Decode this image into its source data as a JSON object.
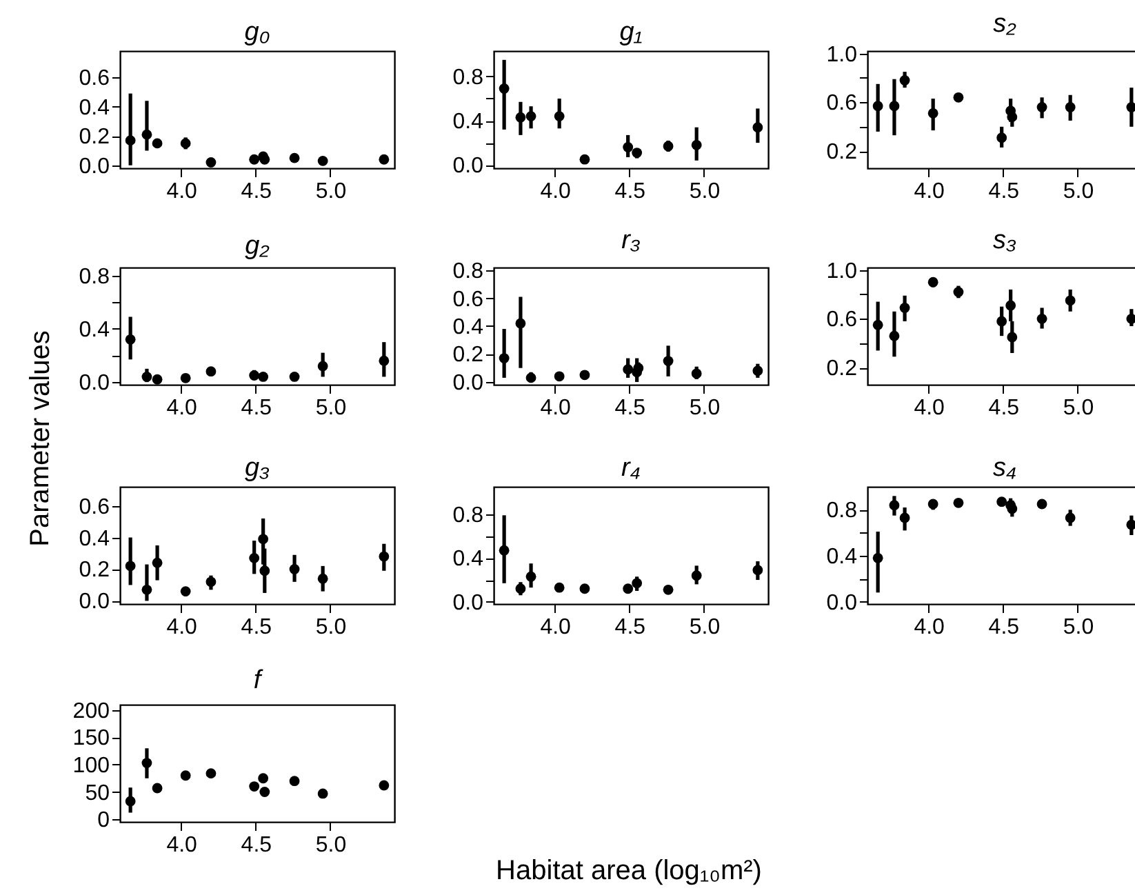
{
  "chart_data": [
    {
      "type": "scatter",
      "title": "g₀",
      "marker": "circle",
      "x": [
        3.66,
        3.77,
        3.84,
        4.03,
        4.2,
        4.49,
        4.55,
        4.56,
        4.76,
        4.95,
        5.36
      ],
      "values": [
        0.17,
        0.21,
        0.15,
        0.15,
        0.02,
        0.04,
        0.06,
        0.04,
        0.05,
        0.03,
        0.04
      ],
      "errors": [
        [
          0.0,
          0.49
        ],
        [
          0.1,
          0.44
        ],
        [
          0.13,
          0.17
        ],
        [
          0.11,
          0.19
        ],
        [
          0.0,
          0.04
        ],
        null,
        [
          0.03,
          0.07
        ],
        null,
        null,
        null,
        null
      ],
      "xlim": [
        3.59,
        5.43
      ],
      "xticks": [
        {
          "value": 4,
          "label": "4.0"
        },
        {
          "value": 4.5,
          "label": "4.5"
        },
        {
          "value": 5,
          "label": "5.0"
        }
      ],
      "ylim": [
        -0.02,
        0.78
      ],
      "yticks": [
        {
          "value": 0,
          "label": "0.0"
        },
        {
          "value": 0.2,
          "label": "0.2"
        },
        {
          "value": 0.4,
          "label": "0.4"
        },
        {
          "value": 0.6,
          "label": "0.6"
        }
      ]
    },
    {
      "type": "scatter",
      "title": "g₁",
      "marker": "circle",
      "x": [
        3.66,
        3.77,
        3.84,
        4.03,
        4.2,
        4.49,
        4.55,
        4.56,
        4.76,
        4.95,
        5.36
      ],
      "values": [
        0.69,
        0.43,
        0.44,
        0.44,
        0.05,
        0.16,
        0.11,
        null,
        0.17,
        0.18,
        0.34
      ],
      "errors": [
        [
          0.32,
          0.95
        ],
        [
          0.27,
          0.57
        ],
        [
          0.33,
          0.53
        ],
        [
          0.33,
          0.6
        ],
        [
          0.03,
          0.07
        ],
        [
          0.07,
          0.27
        ],
        [
          0.06,
          0.14
        ],
        null,
        [
          0.12,
          0.22
        ],
        [
          0.04,
          0.34
        ],
        [
          0.2,
          0.51
        ]
      ],
      "xlim": [
        3.59,
        5.43
      ],
      "xticks": [
        {
          "value": 4,
          "label": "4.0"
        },
        {
          "value": 4.5,
          "label": "4.5"
        },
        {
          "value": 5,
          "label": "5.0"
        }
      ],
      "ylim": [
        -0.03,
        1.03
      ],
      "yticks": [
        {
          "value": 0,
          "label": "0.0"
        },
        {
          "value": 0.2,
          "label": null
        },
        {
          "value": 0.4,
          "label": "0.4"
        },
        {
          "value": 0.6,
          "label": null
        },
        {
          "value": 0.8,
          "label": "0.8"
        }
      ]
    },
    {
      "type": "scatter",
      "title": "s₂",
      "marker": "circle",
      "x": [
        3.66,
        3.77,
        3.84,
        4.03,
        4.2,
        4.49,
        4.55,
        4.56,
        4.76,
        4.95,
        5.36
      ],
      "values": [
        0.57,
        0.57,
        0.78,
        0.51,
        0.64,
        0.31,
        0.53,
        0.48,
        0.56,
        0.56,
        0.56
      ],
      "errors": [
        [
          0.36,
          0.75
        ],
        [
          0.33,
          0.79
        ],
        [
          0.72,
          0.85
        ],
        [
          0.37,
          0.63
        ],
        [
          0.61,
          0.66
        ],
        [
          0.23,
          0.4
        ],
        [
          0.44,
          0.63
        ],
        [
          0.4,
          0.55
        ],
        [
          0.47,
          0.64
        ],
        [
          0.45,
          0.66
        ],
        [
          0.4,
          0.72
        ]
      ],
      "xlim": [
        3.59,
        5.43
      ],
      "xticks": [
        {
          "value": 4,
          "label": "4.0"
        },
        {
          "value": 4.5,
          "label": "4.5"
        },
        {
          "value": 5,
          "label": "5.0"
        }
      ],
      "ylim": [
        0.06,
        1.02
      ],
      "yticks": [
        {
          "value": 0.2,
          "label": "0.2"
        },
        {
          "value": 0.4,
          "label": null
        },
        {
          "value": 0.6,
          "label": "0.6"
        },
        {
          "value": 0.8,
          "label": null
        },
        {
          "value": 1,
          "label": "1.0"
        }
      ]
    },
    {
      "type": "scatter",
      "title": "g₂",
      "ylabel": "Parameter values",
      "marker": "circle",
      "x": [
        3.66,
        3.77,
        3.84,
        4.03,
        4.2,
        4.49,
        4.55,
        4.56,
        4.76,
        4.95,
        5.36
      ],
      "values": [
        0.32,
        0.04,
        0.02,
        0.03,
        0.08,
        0.05,
        0.04,
        null,
        0.04,
        0.12,
        0.16
      ],
      "errors": [
        [
          0.17,
          0.49
        ],
        [
          0.0,
          0.1
        ],
        null,
        null,
        [
          0.07,
          0.1
        ],
        [
          0.02,
          0.09
        ],
        [
          0.01,
          0.07
        ],
        null,
        [
          0.02,
          0.07
        ],
        [
          0.04,
          0.22
        ],
        [
          0.04,
          0.3
        ]
      ],
      "xlim": [
        3.59,
        5.43
      ],
      "xticks": [
        {
          "value": 4,
          "label": "4.0"
        },
        {
          "value": 4.5,
          "label": "4.5"
        },
        {
          "value": 5,
          "label": "5.0"
        }
      ],
      "ylim": [
        -0.02,
        0.86
      ],
      "yticks": [
        {
          "value": 0,
          "label": "0.0"
        },
        {
          "value": 0.2,
          "label": null
        },
        {
          "value": 0.4,
          "label": "0.4"
        },
        {
          "value": 0.6,
          "label": null
        },
        {
          "value": 0.8,
          "label": "0.8"
        }
      ]
    },
    {
      "type": "scatter",
      "title": "r₃",
      "marker": "circle",
      "x": [
        3.66,
        3.77,
        3.84,
        4.03,
        4.2,
        4.49,
        4.55,
        4.56,
        4.76,
        4.95,
        5.36
      ],
      "values": [
        0.17,
        0.42,
        0.03,
        0.04,
        0.05,
        0.09,
        0.07,
        0.1,
        0.15,
        0.06,
        0.08
      ],
      "errors": [
        [
          0.03,
          0.38
        ],
        [
          0.1,
          0.61
        ],
        [
          0.0,
          0.07
        ],
        [
          0.02,
          0.07
        ],
        [
          0.03,
          0.07
        ],
        [
          0.03,
          0.17
        ],
        [
          0.0,
          0.17
        ],
        [
          0.05,
          0.14
        ],
        [
          0.04,
          0.26
        ],
        [
          0.02,
          0.11
        ],
        [
          0.03,
          0.13
        ]
      ],
      "xlim": [
        3.59,
        5.43
      ],
      "xticks": [
        {
          "value": 4,
          "label": "4.0"
        },
        {
          "value": 4.5,
          "label": "4.5"
        },
        {
          "value": 5,
          "label": "5.0"
        }
      ],
      "ylim": [
        -0.02,
        0.82
      ],
      "yticks": [
        {
          "value": 0,
          "label": "0.0"
        },
        {
          "value": 0.2,
          "label": "0.2"
        },
        {
          "value": 0.4,
          "label": "0.4"
        },
        {
          "value": 0.6,
          "label": "0.6"
        },
        {
          "value": 0.8,
          "label": "0.8"
        }
      ]
    },
    {
      "type": "scatter",
      "title": "s₃",
      "marker": "circle",
      "x": [
        3.66,
        3.77,
        3.84,
        4.03,
        4.2,
        4.49,
        4.55,
        4.56,
        4.76,
        4.95,
        5.36
      ],
      "values": [
        0.55,
        0.46,
        0.69,
        0.9,
        0.82,
        0.58,
        0.71,
        0.45,
        0.6,
        0.75,
        0.6
      ],
      "errors": [
        [
          0.34,
          0.74
        ],
        [
          0.29,
          0.66
        ],
        [
          0.58,
          0.79
        ],
        [
          0.86,
          0.93
        ],
        [
          0.77,
          0.87
        ],
        [
          0.46,
          0.7
        ],
        [
          0.58,
          0.84
        ],
        [
          0.32,
          0.58
        ],
        [
          0.52,
          0.69
        ],
        [
          0.66,
          0.84
        ],
        [
          0.54,
          0.68
        ]
      ],
      "xlim": [
        3.59,
        5.43
      ],
      "xticks": [
        {
          "value": 4,
          "label": "4.0"
        },
        {
          "value": 4.5,
          "label": "4.5"
        },
        {
          "value": 5,
          "label": "5.0"
        }
      ],
      "ylim": [
        0.06,
        1.02
      ],
      "yticks": [
        {
          "value": 0.2,
          "label": "0.2"
        },
        {
          "value": 0.4,
          "label": null
        },
        {
          "value": 0.6,
          "label": "0.6"
        },
        {
          "value": 0.8,
          "label": null
        },
        {
          "value": 1,
          "label": "1.0"
        }
      ]
    },
    {
      "type": "scatter",
      "title": "g₃",
      "marker": "circle",
      "x": [
        3.66,
        3.77,
        3.84,
        4.03,
        4.2,
        4.49,
        4.55,
        4.56,
        4.76,
        4.95,
        5.36
      ],
      "values": [
        0.22,
        0.07,
        0.24,
        0.06,
        0.12,
        0.27,
        0.39,
        0.19,
        0.2,
        0.14,
        0.28
      ],
      "errors": [
        [
          0.1,
          0.4
        ],
        [
          0.0,
          0.23
        ],
        [
          0.13,
          0.35
        ],
        [
          0.03,
          0.08
        ],
        [
          0.07,
          0.16
        ],
        [
          0.17,
          0.38
        ],
        [
          0.23,
          0.52
        ],
        [
          0.05,
          0.33
        ],
        [
          0.12,
          0.29
        ],
        [
          0.06,
          0.22
        ],
        [
          0.19,
          0.36
        ]
      ],
      "xlim": [
        3.59,
        5.43
      ],
      "xticks": [
        {
          "value": 4,
          "label": "4.0"
        },
        {
          "value": 4.5,
          "label": "4.5"
        },
        {
          "value": 5,
          "label": "5.0"
        }
      ],
      "ylim": [
        -0.02,
        0.72
      ],
      "yticks": [
        {
          "value": 0,
          "label": "0.0"
        },
        {
          "value": 0.2,
          "label": "0.2"
        },
        {
          "value": 0.4,
          "label": "0.4"
        },
        {
          "value": 0.6,
          "label": "0.6"
        }
      ]
    },
    {
      "type": "scatter",
      "title": "r₄",
      "marker": "circle",
      "x": [
        3.66,
        3.77,
        3.84,
        4.03,
        4.2,
        4.49,
        4.55,
        4.56,
        4.76,
        4.95,
        5.36
      ],
      "values": [
        0.47,
        0.12,
        0.23,
        0.13,
        0.12,
        0.12,
        0.17,
        null,
        0.11,
        0.24,
        0.29
      ],
      "errors": [
        [
          0.17,
          0.79
        ],
        [
          0.06,
          0.18
        ],
        [
          0.13,
          0.35
        ],
        [
          0.09,
          0.16
        ],
        [
          0.1,
          0.14
        ],
        [
          0.08,
          0.15
        ],
        [
          0.1,
          0.23
        ],
        null,
        [
          0.07,
          0.15
        ],
        [
          0.16,
          0.33
        ],
        [
          0.2,
          0.37
        ]
      ],
      "xlim": [
        3.59,
        5.43
      ],
      "xticks": [
        {
          "value": 4,
          "label": "4.0"
        },
        {
          "value": 4.5,
          "label": "4.5"
        },
        {
          "value": 5,
          "label": "5.0"
        }
      ],
      "ylim": [
        -0.02,
        1.05
      ],
      "yticks": [
        {
          "value": 0,
          "label": "0.0"
        },
        {
          "value": 0.2,
          "label": null
        },
        {
          "value": 0.4,
          "label": "0.4"
        },
        {
          "value": 0.6,
          "label": null
        },
        {
          "value": 0.8,
          "label": "0.8"
        }
      ]
    },
    {
      "type": "scatter",
      "title": "s₄",
      "marker": "circle",
      "x": [
        3.66,
        3.77,
        3.84,
        4.03,
        4.2,
        4.49,
        4.55,
        4.56,
        4.76,
        4.95,
        5.36
      ],
      "values": [
        0.38,
        0.84,
        0.73,
        0.85,
        0.86,
        0.87,
        0.84,
        0.81,
        0.85,
        0.73,
        0.67
      ],
      "errors": [
        [
          0.08,
          0.61
        ],
        [
          0.75,
          0.92
        ],
        [
          0.62,
          0.82
        ],
        [
          0.8,
          0.88
        ],
        [
          0.82,
          0.89
        ],
        [
          0.83,
          0.9
        ],
        [
          0.77,
          0.9
        ],
        [
          0.74,
          0.88
        ],
        [
          0.81,
          0.89
        ],
        [
          0.66,
          0.8
        ],
        [
          0.58,
          0.75
        ]
      ],
      "xlim": [
        3.59,
        5.43
      ],
      "xticks": [
        {
          "value": 4,
          "label": "4.0"
        },
        {
          "value": 4.5,
          "label": "4.5"
        },
        {
          "value": 5,
          "label": "5.0"
        }
      ],
      "ylim": [
        -0.02,
        1.0
      ],
      "yticks": [
        {
          "value": 0,
          "label": "0.0"
        },
        {
          "value": 0.2,
          "label": null
        },
        {
          "value": 0.4,
          "label": "0.4"
        },
        {
          "value": 0.6,
          "label": null
        },
        {
          "value": 0.8,
          "label": "0.8"
        }
      ]
    },
    {
      "type": "scatter",
      "title": "f",
      "xlabel": "Habitat area (log₁₀m²)",
      "marker": "circle",
      "x": [
        3.66,
        3.77,
        3.84,
        4.03,
        4.2,
        4.49,
        4.55,
        4.56,
        4.76,
        4.95,
        5.36
      ],
      "values": [
        33,
        103,
        57,
        80,
        84,
        60,
        75,
        50,
        70,
        47,
        62
      ],
      "errors": [
        [
          12,
          58
        ],
        [
          75,
          130
        ],
        [
          50,
          62
        ],
        [
          74,
          88
        ],
        [
          78,
          90
        ],
        [
          52,
          65
        ],
        [
          68,
          80
        ],
        [
          45,
          55
        ],
        [
          65,
          75
        ],
        [
          40,
          52
        ],
        [
          55,
          68
        ]
      ],
      "xlim": [
        3.59,
        5.43
      ],
      "xticks": [
        {
          "value": 4,
          "label": "4.0"
        },
        {
          "value": 4.5,
          "label": "4.5"
        },
        {
          "value": 5,
          "label": "5.0"
        }
      ],
      "ylim": [
        -5,
        210
      ],
      "yticks": [
        0,
        50,
        100,
        150,
        200
      ]
    }
  ]
}
